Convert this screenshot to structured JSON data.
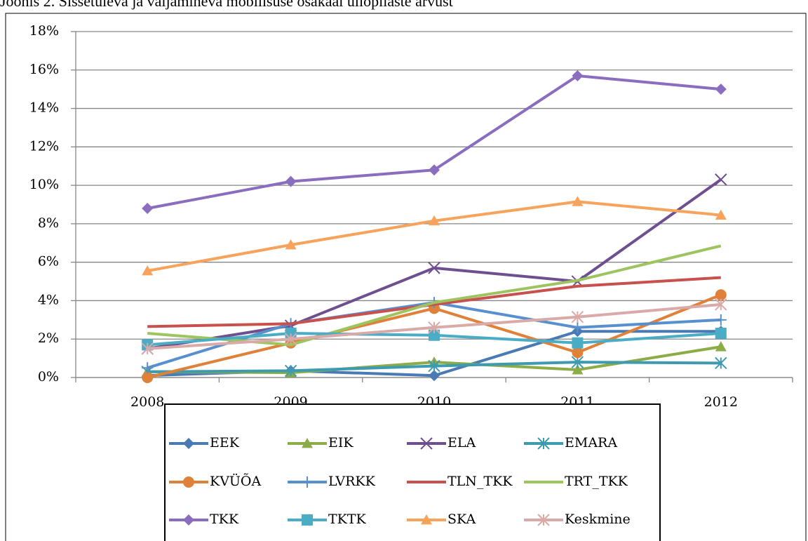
{
  "chart_data": {
    "type": "line",
    "title": "Joonis 2. Sissetuleva ja väljamineva mobiilsuse osakaal üliõpilaste arvust",
    "categories": [
      "2008",
      "2009",
      "2010",
      "2011",
      "2012"
    ],
    "ylim": [
      0,
      18
    ],
    "yticks": [
      {
        "value": 0,
        "label": "0%"
      },
      {
        "value": 2,
        "label": "2%"
      },
      {
        "value": 4,
        "label": "4%"
      },
      {
        "value": 6,
        "label": "6%"
      },
      {
        "value": 8,
        "label": "8%"
      },
      {
        "value": 10,
        "label": "10%"
      },
      {
        "value": 12,
        "label": "12%"
      },
      {
        "value": 14,
        "label": "14%"
      },
      {
        "value": 16,
        "label": "16%"
      },
      {
        "value": 18,
        "label": "18%"
      }
    ],
    "grid": true,
    "legend": "bottom",
    "series": [
      {
        "name": "EEK",
        "color": "#4a7ab4",
        "marker": "diamond",
        "values": [
          0.1,
          0.35,
          0.1,
          2.4,
          2.4
        ]
      },
      {
        "name": "EIK",
        "color": "#8bac46",
        "marker": "triangle",
        "values": [
          0.3,
          0.25,
          0.8,
          0.4,
          1.6
        ]
      },
      {
        "name": "ELA",
        "color": "#6e4f8f",
        "marker": "x",
        "values": [
          1.5,
          2.7,
          5.7,
          5.0,
          10.3
        ]
      },
      {
        "name": "EMARA",
        "color": "#3d9ab0",
        "marker": "asterisk",
        "values": [
          0.3,
          0.35,
          0.6,
          0.8,
          0.75
        ]
      },
      {
        "name": "KVÜÕA",
        "color": "#e0813a",
        "marker": "circle",
        "values": [
          0.0,
          1.8,
          3.6,
          1.3,
          4.3
        ]
      },
      {
        "name": "LVRKK",
        "color": "#5890cf",
        "marker": "plus",
        "values": [
          0.5,
          2.8,
          3.9,
          2.6,
          3.0
        ]
      },
      {
        "name": "TLN_TKK",
        "color": "#c8504d",
        "values": [
          2.65,
          2.8,
          3.8,
          4.75,
          5.2
        ]
      },
      {
        "name": "TRT_TKK",
        "color": "#9dc45f",
        "values": [
          2.3,
          1.7,
          3.9,
          5.05,
          6.85
        ]
      },
      {
        "name": "TKK",
        "color": "#8a6dbf",
        "marker": "diamond",
        "values": [
          8.8,
          10.2,
          10.8,
          15.7,
          15.0
        ]
      },
      {
        "name": "TKTK",
        "color": "#4bacc6",
        "marker": "square",
        "values": [
          1.7,
          2.3,
          2.2,
          1.8,
          2.3
        ]
      },
      {
        "name": "SKA",
        "color": "#f7a35c",
        "marker": "triangle",
        "values": [
          5.55,
          6.9,
          8.15,
          9.15,
          8.45
        ]
      },
      {
        "name": "Keskmine",
        "color": "#d9aaa8",
        "marker": "asterisk",
        "values": [
          1.5,
          2.0,
          2.6,
          3.15,
          3.8
        ]
      }
    ]
  }
}
